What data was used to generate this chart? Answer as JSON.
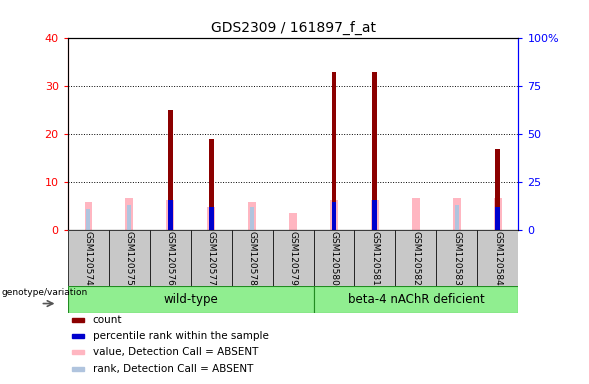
{
  "title": "GDS2309 / 161897_f_at",
  "samples": [
    "GSM120574",
    "GSM120575",
    "GSM120576",
    "GSM120577",
    "GSM120578",
    "GSM120579",
    "GSM120580",
    "GSM120581",
    "GSM120582",
    "GSM120583",
    "GSM120584"
  ],
  "count_values": [
    0,
    0,
    25,
    19,
    0,
    0,
    33,
    33,
    0,
    0,
    17
  ],
  "pink_values": [
    15,
    17,
    16,
    12,
    15,
    9,
    16,
    16,
    17,
    17,
    17
  ],
  "blue_rank_values": [
    11,
    13,
    0,
    12,
    12,
    0,
    15,
    0,
    0,
    13,
    12
  ],
  "blue_pct_values": [
    0,
    0,
    16,
    12,
    0,
    0,
    15,
    16,
    0,
    0,
    12
  ],
  "ylim_left": [
    0,
    40
  ],
  "ylim_right": [
    0,
    100
  ],
  "yticks_left": [
    0,
    10,
    20,
    30,
    40
  ],
  "yticks_right": [
    0,
    25,
    50,
    75,
    100
  ],
  "pink_bar_color": "#FFB6C1",
  "light_blue_color": "#B0C4DE",
  "dark_red_color": "#8B0000",
  "blue_color": "#0000CD",
  "bg_color": "#C8C8C8",
  "green_color": "#90EE90",
  "legend_items": [
    {
      "label": "count",
      "color": "#8B0000"
    },
    {
      "label": "percentile rank within the sample",
      "color": "#0000CD"
    },
    {
      "label": "value, Detection Call = ABSENT",
      "color": "#FFB6C1"
    },
    {
      "label": "rank, Detection Call = ABSENT",
      "color": "#B0C4DE"
    }
  ]
}
